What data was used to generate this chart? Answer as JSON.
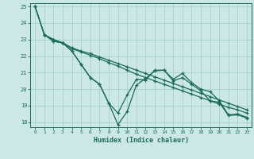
{
  "xlabel": "Humidex (Indice chaleur)",
  "bg_color": "#cce8e4",
  "grid_color": "#aad4d0",
  "line_color": "#1a6b5a",
  "xlim": [
    -0.5,
    23.5
  ],
  "ylim": [
    17.7,
    25.2
  ],
  "yticks": [
    18,
    19,
    20,
    21,
    22,
    23,
    24,
    25
  ],
  "xticks": [
    0,
    1,
    2,
    3,
    4,
    5,
    6,
    7,
    8,
    9,
    10,
    11,
    12,
    13,
    14,
    15,
    16,
    17,
    18,
    19,
    20,
    21,
    22,
    23
  ],
  "series1_x": [
    0,
    1,
    2,
    3,
    4,
    5,
    6,
    7,
    8,
    9,
    10,
    11,
    12,
    13,
    14,
    15,
    16,
    17,
    18,
    19,
    20,
    21,
    22,
    23
  ],
  "series1_y": [
    25.0,
    23.3,
    23.0,
    22.8,
    22.5,
    22.3,
    22.15,
    21.95,
    21.75,
    21.55,
    21.35,
    21.15,
    20.95,
    20.75,
    20.55,
    20.35,
    20.15,
    19.95,
    19.75,
    19.55,
    19.35,
    19.15,
    18.95,
    18.75
  ],
  "series2_x": [
    0,
    1,
    2,
    3,
    4,
    5,
    6,
    7,
    8,
    9,
    10,
    11,
    12,
    13,
    14,
    15,
    16,
    17,
    18,
    19,
    20,
    21,
    22,
    23
  ],
  "series2_y": [
    25.0,
    23.3,
    23.0,
    22.8,
    22.45,
    22.25,
    22.05,
    21.85,
    21.6,
    21.4,
    21.15,
    20.9,
    20.7,
    20.5,
    20.3,
    20.1,
    19.9,
    19.7,
    19.5,
    19.3,
    19.1,
    18.9,
    18.75,
    18.55
  ],
  "series3_x": [
    0,
    1,
    2,
    3,
    4,
    5,
    6,
    7,
    8,
    9,
    10,
    11,
    12,
    13,
    14,
    15,
    16,
    17,
    18,
    19,
    20,
    21,
    22,
    23
  ],
  "series3_y": [
    25.0,
    23.3,
    22.9,
    22.8,
    22.3,
    21.5,
    20.7,
    20.3,
    19.15,
    18.55,
    19.65,
    20.6,
    20.55,
    21.15,
    21.15,
    20.6,
    20.95,
    20.4,
    20.0,
    19.85,
    19.3,
    18.45,
    18.5,
    18.3
  ],
  "series4_x": [
    1,
    2,
    3,
    4,
    5,
    6,
    7,
    8,
    9,
    10,
    11,
    12,
    13,
    14,
    15,
    16,
    17,
    18,
    19,
    20,
    21,
    22,
    23
  ],
  "series4_y": [
    23.3,
    22.9,
    22.8,
    22.3,
    21.5,
    20.7,
    20.3,
    19.15,
    17.85,
    18.65,
    20.25,
    20.65,
    21.1,
    21.15,
    20.5,
    20.7,
    20.3,
    19.9,
    19.3,
    19.2,
    18.4,
    18.45,
    18.25
  ]
}
